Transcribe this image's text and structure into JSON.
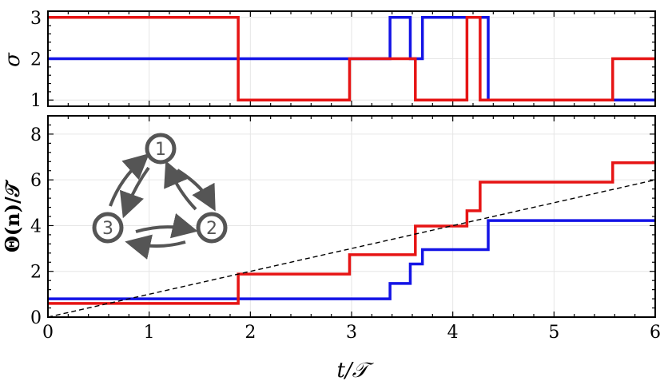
{
  "chart_data": [
    {
      "type": "line",
      "step": true,
      "xlabel": "",
      "ylabel": "σ",
      "xlim": [
        0,
        6
      ],
      "ylim": [
        0.85,
        3.15
      ],
      "yticks": [
        1,
        2,
        3
      ],
      "grid": true,
      "series": [
        {
          "color": "#1414e6",
          "x": [
            0,
            3.38,
            3.38,
            3.58,
            3.58,
            3.7,
            3.7,
            4.35,
            4.35,
            6
          ],
          "y": [
            2,
            2,
            3,
            3,
            2,
            2,
            3,
            3,
            1,
            1
          ]
        },
        {
          "color": "#e61414",
          "x": [
            0,
            1.88,
            1.88,
            2.98,
            2.98,
            3.63,
            3.63,
            4.14,
            4.14,
            4.27,
            4.27,
            5.58,
            5.58,
            6
          ],
          "y": [
            3,
            3,
            1,
            1,
            2,
            2,
            1,
            1,
            3,
            3,
            1,
            1,
            2,
            2
          ]
        }
      ]
    },
    {
      "type": "line",
      "step": true,
      "xlabel": "t/𝒯",
      "ylabel": "Θ(n)/𝒯",
      "xlim": [
        0,
        6
      ],
      "ylim": [
        0,
        8.8
      ],
      "xticks": [
        0,
        1,
        2,
        3,
        4,
        5,
        6
      ],
      "yticks": [
        0,
        2,
        4,
        6,
        8
      ],
      "grid": true,
      "series": [
        {
          "color": "#1414e6",
          "x": [
            0,
            3.38,
            3.38,
            3.58,
            3.58,
            3.7,
            3.7,
            4.35,
            4.35,
            6
          ],
          "y": [
            0.8,
            0.8,
            1.47,
            1.47,
            2.32,
            2.32,
            2.95,
            2.95,
            4.22,
            4.22
          ]
        },
        {
          "color": "#e61414",
          "x": [
            0,
            1.88,
            1.88,
            2.98,
            2.98,
            3.63,
            3.63,
            4.14,
            4.14,
            4.27,
            4.27,
            5.58,
            5.58,
            6
          ],
          "y": [
            0.6,
            0.6,
            1.88,
            1.88,
            2.73,
            2.73,
            3.98,
            3.98,
            4.65,
            4.65,
            5.9,
            5.9,
            6.75,
            6.75
          ]
        },
        {
          "color": "#000000",
          "dashed": true,
          "x": [
            0,
            6
          ],
          "y": [
            0,
            6
          ]
        }
      ],
      "inset": {
        "nodes": [
          "1",
          "2",
          "3"
        ]
      }
    }
  ]
}
